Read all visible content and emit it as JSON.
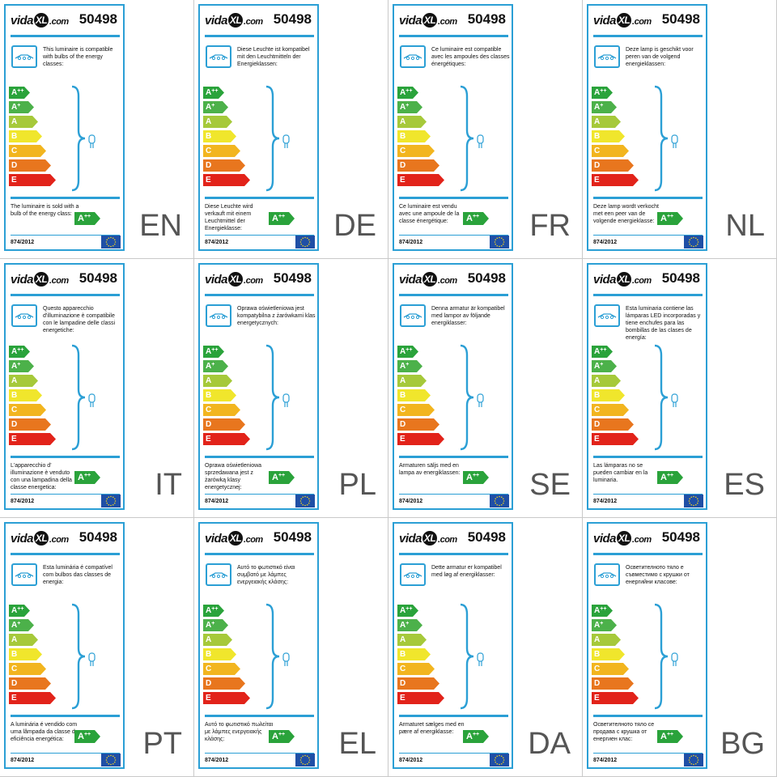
{
  "brand": {
    "logo_left": "vida",
    "logo_mark": "XL",
    "logo_right": ".com"
  },
  "product_number": "50498",
  "regulation": "874/2012",
  "colors": {
    "frame": "#2b9fd5",
    "A++": "#2aa33b",
    "A+": "#4cb14a",
    "A": "#a6c93a",
    "B": "#f0e62c",
    "C": "#f2b51f",
    "D": "#e8761e",
    "E": "#e2231a",
    "badge": "#2aa33b",
    "eu_flag": "#1f4fa6"
  },
  "energy_classes": [
    {
      "label": "A",
      "sup": "++",
      "color": "#2aa33b",
      "width": 0.42
    },
    {
      "label": "A",
      "sup": "+",
      "color": "#4cb14a",
      "width": 0.5
    },
    {
      "label": "A",
      "sup": "",
      "color": "#a6c93a",
      "width": 0.58
    },
    {
      "label": "B",
      "sup": "",
      "color": "#f0e62c",
      "width": 0.66
    },
    {
      "label": "C",
      "sup": "",
      "color": "#f2b51f",
      "width": 0.74
    },
    {
      "label": "D",
      "sup": "",
      "color": "#e8761e",
      "width": 0.84
    },
    {
      "label": "E",
      "sup": "",
      "color": "#e2231a",
      "width": 0.94
    }
  ],
  "badge": {
    "label": "A",
    "sup": "++"
  },
  "labels": [
    {
      "lang": "EN",
      "compat": "This luminaire is compatible with bulbs of the energy classes:",
      "sold": "The luminaire is sold with a bulb of the energy class:"
    },
    {
      "lang": "DE",
      "compat": "Diese Leuchte ist kompatibel mit den Leuchtmitteln der Energieklassen:",
      "sold": "Diese Leuchte wird verkauft mit einem Leuchtmittel der Energieklasse:"
    },
    {
      "lang": "FR",
      "compat": "Ce luminaire est compatible avec les ampoules des classes énergétiques:",
      "sold": "Ce luminaire est vendu avec une ampoule de la classe énergétique:"
    },
    {
      "lang": "NL",
      "compat": "Deze lamp is geschikt voor peren van de volgend energieklassen:",
      "sold": "Deze lamp wordt verkocht met een peer van de volgende energieklasse:"
    },
    {
      "lang": "IT",
      "compat": "Questo apparecchio d'illuminazione è compatibile con le lampadine delle classi energetiche:",
      "sold": "L'apparecchio d' illuminazione è venduto con una lampadina della classe energetica:"
    },
    {
      "lang": "PL",
      "compat": "Oprawa oświetleniowa jest kompatybilna z żarówkami klas energetycznych:",
      "sold": "Oprawa oświetleniowa sprzedawana jest z żarówką klasy energetycznej:"
    },
    {
      "lang": "SE",
      "compat": "Denna armatur är kompatibel med lampor av följande energiklasser:",
      "sold": "Armaturen säljs med en lampa av energiklassen:"
    },
    {
      "lang": "ES",
      "compat": "Esta luminaria contiene las lámparas LED incorporadas y tiene enchufes para las bombillas de las clases de energía:",
      "sold": "Las lámparas no se pueden cambiar en la luminaria."
    },
    {
      "lang": "PT",
      "compat": "Esta luminária é compatível com bulbos das classes de energia:",
      "sold": "A luminária é vendido com uma lâmpada da classe de eficiência energética:"
    },
    {
      "lang": "EL",
      "compat": "Αυτό το φωτιστικό είναι συμβατό με λάμπες ενεργειακής κλάσης:",
      "sold": "Αυτό το φωτιστικό πωλείται με λάμπες ενεργειακής κλάσης:"
    },
    {
      "lang": "DA",
      "compat": "Dette armatur er kompatibel med løg af energiklasser:",
      "sold": "Armaturet sælges med en pære af energiklasse:"
    },
    {
      "lang": "BG",
      "compat": "Осветителното тяло е съвместимо с крушки от енергийни класове:",
      "sold": "Осветителното тяло се продава с крушка от енергиен клас:"
    }
  ]
}
